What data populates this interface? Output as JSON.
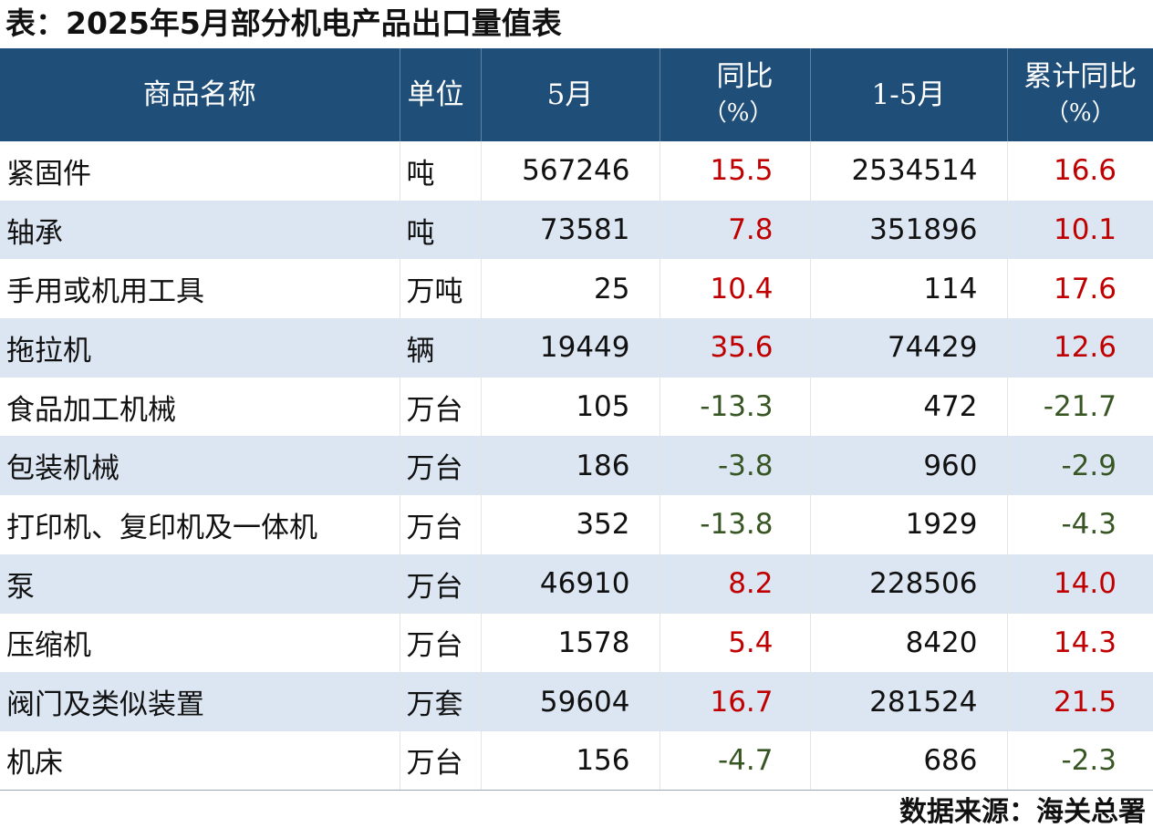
{
  "title": "表：2025年5月部分机电产品出口量值表",
  "headers": {
    "name": "商品名称",
    "unit": "单位",
    "may": "5月",
    "yoy": "同比",
    "yoy_unit": "（%）",
    "cum": "1-5月",
    "cum_yoy": "累计同比",
    "cum_yoy_unit": "（%）"
  },
  "colors": {
    "header_bg": "#1f4e79",
    "stripe": "#dce6f2",
    "positive": "#c00000",
    "negative": "#375623"
  },
  "rows": [
    {
      "name": "紧固件",
      "unit": "吨",
      "may": "567246",
      "yoy": "15.5",
      "cum": "2534514",
      "cum_yoy": "16.6"
    },
    {
      "name": "轴承",
      "unit": "吨",
      "may": "73581",
      "yoy": "7.8",
      "cum": "351896",
      "cum_yoy": "10.1"
    },
    {
      "name": "手用或机用工具",
      "unit": "万吨",
      "may": "25",
      "yoy": "10.4",
      "cum": "114",
      "cum_yoy": "17.6"
    },
    {
      "name": "拖拉机",
      "unit": "辆",
      "may": "19449",
      "yoy": "35.6",
      "cum": "74429",
      "cum_yoy": "12.6"
    },
    {
      "name": "食品加工机械",
      "unit": "万台",
      "may": "105",
      "yoy": "-13.3",
      "cum": "472",
      "cum_yoy": "-21.7"
    },
    {
      "name": "包装机械",
      "unit": "万台",
      "may": "186",
      "yoy": "-3.8",
      "cum": "960",
      "cum_yoy": "-2.9"
    },
    {
      "name": "打印机、复印机及一体机",
      "unit": "万台",
      "may": "352",
      "yoy": "-13.8",
      "cum": "1929",
      "cum_yoy": "-4.3"
    },
    {
      "name": "泵",
      "unit": "万台",
      "may": "46910",
      "yoy": "8.2",
      "cum": "228506",
      "cum_yoy": "14.0"
    },
    {
      "name": "压缩机",
      "unit": "万台",
      "may": "1578",
      "yoy": "5.4",
      "cum": "8420",
      "cum_yoy": "14.3"
    },
    {
      "name": "阀门及类似装置",
      "unit": "万套",
      "may": "59604",
      "yoy": "16.7",
      "cum": "281524",
      "cum_yoy": "21.5"
    },
    {
      "name": "机床",
      "unit": "万台",
      "may": "156",
      "yoy": "-4.7",
      "cum": "686",
      "cum_yoy": "-2.3"
    }
  ],
  "source": "数据来源：海关总署"
}
